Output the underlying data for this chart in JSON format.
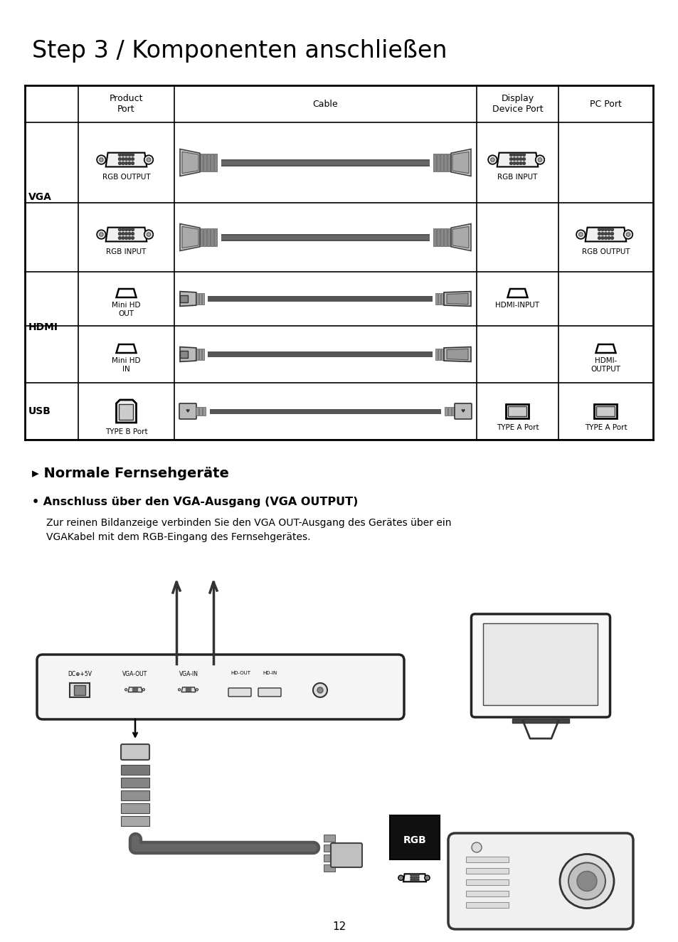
{
  "title": "Step 3 / Komponenten anschließen",
  "title_fontsize": 24,
  "bg_color": "#ffffff",
  "text_color": "#000000",
  "section_title": "▸ Normale Fernsehgeräte",
  "bullet_title": "• Anschluss über den VGA-Ausgang (VGA OUTPUT)",
  "bullet_body_1": "Zur reinen Bildanzeige verbinden Sie den VGA OUT-Ausgang des Gerätes über ein",
  "bullet_body_2": "VGAKabel mit dem RGB-Eingang des Fernsehgerätes.",
  "page_number": "12",
  "table_cols": [
    35,
    110,
    245,
    670,
    785,
    918
  ],
  "table_rows": [
    120,
    172,
    285,
    395,
    495,
    600
  ],
  "col_headers": [
    "Product\nPort",
    "Cable",
    "Display\nDevice Port",
    "PC Port"
  ]
}
